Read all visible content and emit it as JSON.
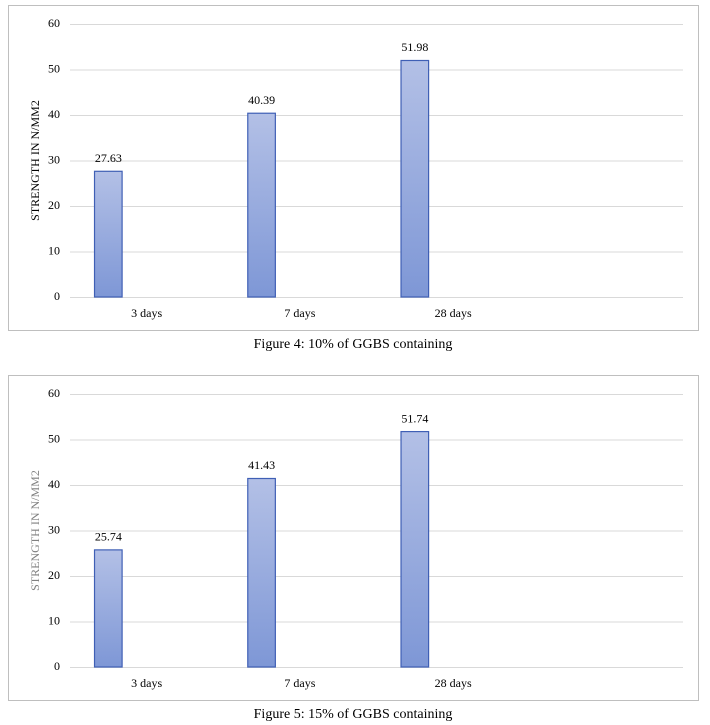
{
  "chart_data": [
    {
      "type": "bar",
      "caption": "Figure 4: 10% of GGBS containing",
      "y_label": "STRENGTH IN N/MM2",
      "categories": [
        "3 days",
        "7 days",
        "28 days",
        null
      ],
      "values": [
        27.63,
        40.39,
        51.98,
        null
      ],
      "color": "#8fa3dc",
      "ylim": [
        0,
        60
      ],
      "yticks": [
        0,
        10,
        20,
        30,
        40,
        50,
        60
      ],
      "grid": true
    },
    {
      "type": "bar",
      "caption": "Figure 5: 15% of GGBS containing",
      "y_label": "STRENGTH IN N/MM2",
      "categories": [
        "3 days",
        "7 days",
        "28 days",
        null
      ],
      "values": [
        25.74,
        41.43,
        51.74,
        null
      ],
      "color": "#8fa3dc",
      "ylim": [
        0,
        60
      ],
      "yticks": [
        0,
        10,
        20,
        30,
        40,
        50,
        60
      ],
      "grid": true
    }
  ]
}
